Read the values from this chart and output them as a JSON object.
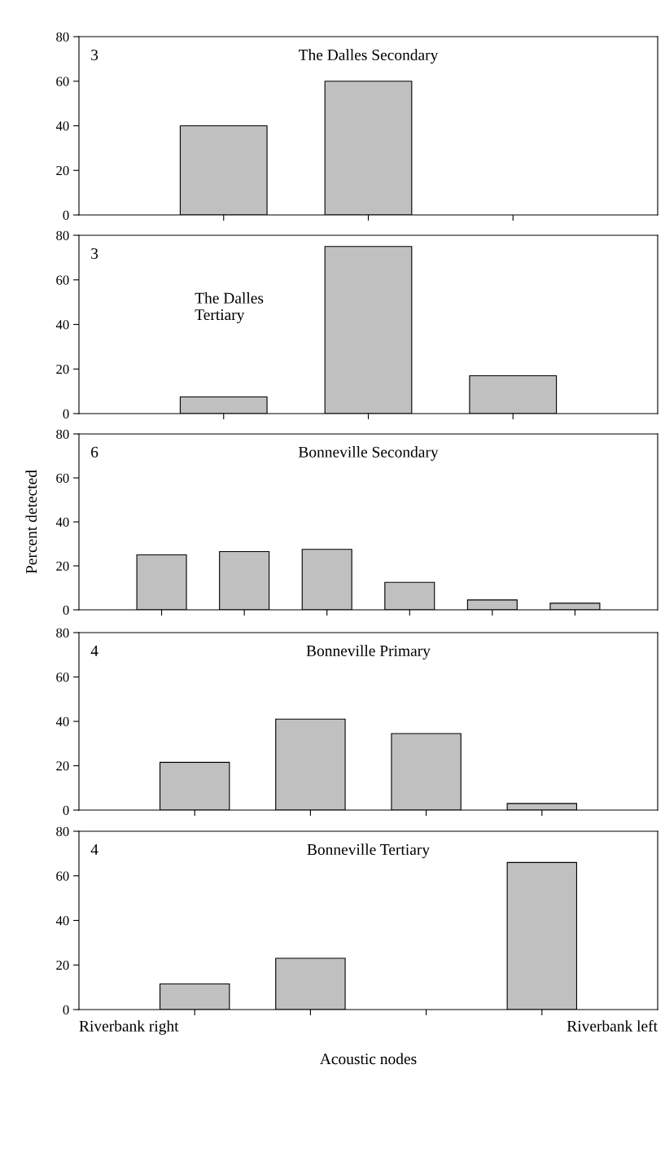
{
  "chart_data": [
    {
      "type": "bar",
      "title": "The Dalles Secondary",
      "categories": [
        null,
        null,
        null
      ],
      "values": [
        40,
        60,
        null
      ],
      "color": "#c0c0c0",
      "ylim": [
        0,
        80
      ],
      "yticks": [
        0,
        20,
        40,
        60,
        80
      ],
      "annotations": [
        "3"
      ],
      "grid": false,
      "legend": false
    },
    {
      "type": "bar",
      "title": "The Dalles\nTertiary",
      "categories": [
        null,
        null,
        null
      ],
      "values": [
        7.5,
        75,
        17
      ],
      "color": "#c0c0c0",
      "ylim": [
        0,
        80
      ],
      "yticks": [
        0,
        20,
        40,
        60,
        80
      ],
      "annotations": [
        "3"
      ],
      "grid": false,
      "legend": false
    },
    {
      "type": "bar",
      "title": "Bonneville Secondary",
      "ylabel": "Percent detected",
      "categories": [
        null,
        null,
        null,
        null,
        null,
        null
      ],
      "values": [
        25,
        26.5,
        27.5,
        12.5,
        4.5,
        3
      ],
      "color": "#c0c0c0",
      "ylim": [
        0,
        80
      ],
      "yticks": [
        0,
        20,
        40,
        60,
        80
      ],
      "annotations": [
        "6"
      ],
      "grid": false,
      "legend": false
    },
    {
      "type": "bar",
      "title": "Bonneville Primary",
      "categories": [
        null,
        null,
        null,
        null
      ],
      "values": [
        21.5,
        41,
        34.5,
        3
      ],
      "color": "#c0c0c0",
      "ylim": [
        0,
        80
      ],
      "yticks": [
        0,
        20,
        40,
        60,
        80
      ],
      "annotations": [
        "4"
      ],
      "grid": false,
      "legend": false
    },
    {
      "type": "bar",
      "title": "Bonneville Tertiary",
      "xlabel": "Acoustic nodes",
      "categories": [
        null,
        null,
        null,
        null
      ],
      "values": [
        11.5,
        23,
        null,
        66
      ],
      "color": "#c0c0c0",
      "ylim": [
        0,
        80
      ],
      "yticks": [
        0,
        20,
        40,
        60,
        80
      ],
      "annotations": [
        "4",
        "Riverbank right",
        "Riverbank left"
      ],
      "grid": false,
      "legend": false
    }
  ]
}
